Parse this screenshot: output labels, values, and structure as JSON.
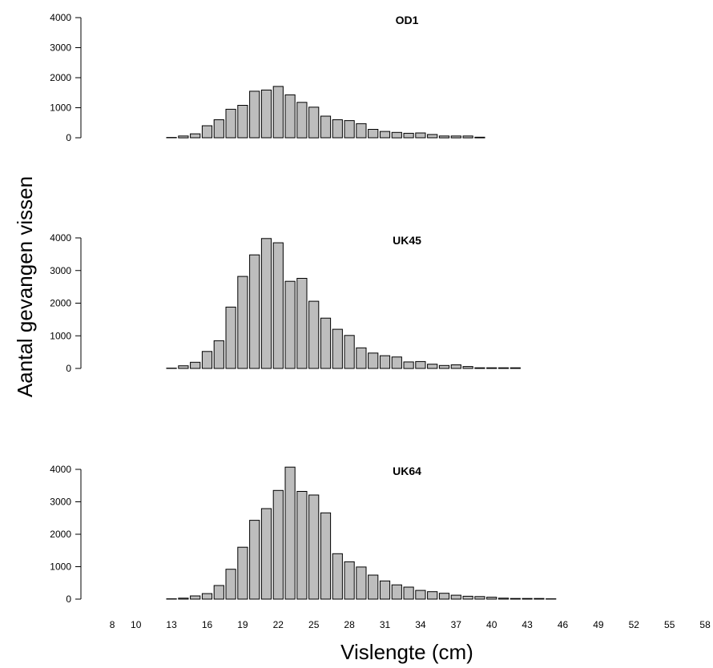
{
  "chart_data": {
    "type": "bar",
    "xlabel": "Vislengte (cm)",
    "ylabel": "Aantal gevangen vissen",
    "x": [
      8,
      9,
      10,
      11,
      12,
      13,
      14,
      15,
      16,
      17,
      18,
      19,
      20,
      21,
      22,
      23,
      24,
      25,
      26,
      27,
      28,
      29,
      30,
      31,
      32,
      33,
      34,
      35,
      36,
      37,
      38,
      39,
      40,
      41,
      42,
      43,
      44,
      45,
      46,
      47,
      48,
      49,
      50,
      51,
      52,
      53,
      54,
      55,
      56,
      57,
      58
    ],
    "x_tick_labels": [
      "8",
      "10",
      "13",
      "16",
      "19",
      "22",
      "25",
      "28",
      "31",
      "34",
      "37",
      "40",
      "43",
      "46",
      "49",
      "52",
      "55",
      "58"
    ],
    "x_tick_values": [
      8,
      10,
      13,
      16,
      19,
      22,
      25,
      28,
      31,
      34,
      37,
      40,
      43,
      46,
      49,
      52,
      55,
      58
    ],
    "ylim": [
      0,
      4000
    ],
    "y_ticks": [
      0,
      1000,
      2000,
      3000,
      4000
    ],
    "bar_color": "#bdbdbd",
    "panels": [
      {
        "title": "OD1",
        "values": [
          0,
          0,
          0,
          0,
          0,
          10,
          60,
          130,
          400,
          600,
          950,
          1080,
          1550,
          1590,
          1710,
          1430,
          1180,
          1020,
          720,
          600,
          570,
          470,
          280,
          210,
          180,
          150,
          160,
          110,
          60,
          60,
          60,
          20,
          0,
          0,
          0,
          0,
          0,
          0,
          0,
          0,
          0,
          0,
          0,
          0,
          0,
          0,
          0,
          0,
          0,
          0,
          0
        ]
      },
      {
        "title": "UK45",
        "values": [
          0,
          0,
          0,
          0,
          0,
          10,
          80,
          190,
          520,
          850,
          1880,
          2820,
          3480,
          3980,
          3850,
          2670,
          2760,
          2060,
          1540,
          1200,
          1010,
          630,
          470,
          390,
          350,
          200,
          210,
          130,
          90,
          110,
          60,
          20,
          20,
          20,
          20,
          0,
          0,
          0,
          0,
          0,
          0,
          0,
          0,
          0,
          0,
          0,
          0,
          0,
          0,
          0,
          0
        ]
      },
      {
        "title": "UK64",
        "values": [
          0,
          0,
          0,
          0,
          0,
          10,
          30,
          100,
          170,
          420,
          920,
          1600,
          2430,
          2790,
          3350,
          4070,
          3320,
          3210,
          2660,
          1400,
          1150,
          990,
          740,
          560,
          440,
          370,
          270,
          230,
          180,
          120,
          90,
          80,
          60,
          30,
          20,
          20,
          20,
          10,
          0,
          0,
          0,
          0,
          0,
          0,
          0,
          0,
          0,
          0,
          0,
          0,
          0
        ]
      }
    ]
  }
}
